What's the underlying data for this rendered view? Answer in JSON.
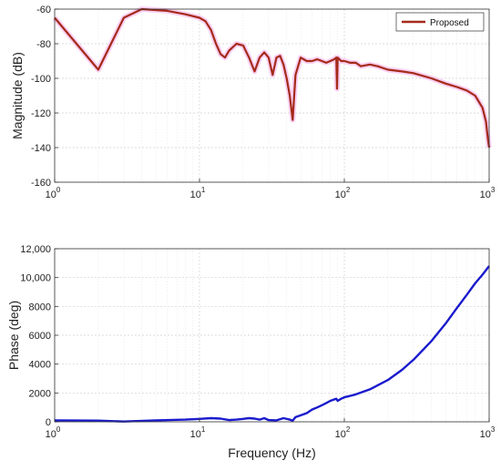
{
  "chart_data": [
    {
      "type": "line",
      "xscale": "log",
      "xlim": [
        1,
        1000
      ],
      "ylim": [
        -160,
        -60
      ],
      "xlabel": "",
      "ylabel": "Magnitude (dB)",
      "xticks": [
        {
          "value": 1,
          "base": "10",
          "exp": "0"
        },
        {
          "value": 10,
          "base": "10",
          "exp": "1"
        },
        {
          "value": 100,
          "base": "10",
          "exp": "2"
        },
        {
          "value": 1000,
          "base": "10",
          "exp": "3"
        }
      ],
      "yticks": [
        {
          "value": -60,
          "label": "-60"
        },
        {
          "value": -80,
          "label": "-80"
        },
        {
          "value": -100,
          "label": "-100"
        },
        {
          "value": -120,
          "label": "-120"
        },
        {
          "value": -140,
          "label": "-140"
        },
        {
          "value": -160,
          "label": "-160"
        }
      ],
      "grid": true,
      "legend": {
        "position": "top-right",
        "entries": [
          "Proposed"
        ]
      },
      "series": [
        {
          "name": "Proposed",
          "color": "#a52a1a",
          "x": [
            1,
            2,
            3,
            4,
            6,
            8,
            10,
            11,
            12,
            13,
            14,
            15,
            16,
            18,
            20,
            22,
            24,
            26,
            28,
            30,
            32,
            34,
            36,
            38,
            40,
            42,
            44,
            46,
            50,
            55,
            60,
            65,
            70,
            75,
            80,
            85,
            88,
            89,
            90,
            95,
            100,
            110,
            120,
            130,
            150,
            170,
            200,
            250,
            300,
            400,
            500,
            600,
            700,
            800,
            900,
            950,
            980,
            1000
          ],
          "y": [
            -65,
            -95,
            -65,
            -60,
            -61,
            -63,
            -65,
            -67,
            -72,
            -80,
            -86,
            -88,
            -84,
            -80,
            -81,
            -88,
            -96,
            -88,
            -85,
            -88,
            -98,
            -88,
            -87,
            -92,
            -100,
            -110,
            -124,
            -98,
            -88,
            -90,
            -90,
            -89,
            -90,
            -91,
            -90,
            -89,
            -88,
            -106,
            -88,
            -90,
            -90,
            -91,
            -91,
            -93,
            -92,
            -93,
            -95,
            -96,
            -97,
            -100,
            -103,
            -105,
            -107,
            -110,
            -117,
            -125,
            -135,
            -140
          ]
        }
      ]
    },
    {
      "type": "line",
      "xscale": "log",
      "xlim": [
        1,
        1000
      ],
      "ylim": [
        0,
        12000
      ],
      "xlabel": "Frequency (Hz)",
      "ylabel": "Phase (deg)",
      "xticks": [
        {
          "value": 1,
          "base": "10",
          "exp": "0"
        },
        {
          "value": 10,
          "base": "10",
          "exp": "1"
        },
        {
          "value": 100,
          "base": "10",
          "exp": "2"
        },
        {
          "value": 1000,
          "base": "10",
          "exp": "3"
        }
      ],
      "yticks": [
        {
          "value": 0,
          "label": "0"
        },
        {
          "value": 2000,
          "label": "2000"
        },
        {
          "value": 4000,
          "label": "4000"
        },
        {
          "value": 6000,
          "label": "6000"
        },
        {
          "value": 8000,
          "label": "8000"
        },
        {
          "value": 10000,
          "label": "10,000"
        },
        {
          "value": 12000,
          "label": "12,000"
        }
      ],
      "grid": true,
      "series": [
        {
          "color": "#1a1acd",
          "x": [
            1,
            2,
            3,
            5,
            8,
            10,
            12,
            14,
            16,
            18,
            20,
            22,
            24,
            26,
            28,
            30,
            34,
            38,
            42,
            44,
            46,
            50,
            55,
            60,
            65,
            70,
            75,
            80,
            85,
            88,
            90,
            95,
            100,
            120,
            150,
            200,
            250,
            300,
            400,
            500,
            600,
            700,
            800,
            900,
            1000
          ],
          "y": [
            100,
            80,
            20,
            100,
            150,
            200,
            250,
            220,
            120,
            150,
            200,
            250,
            220,
            150,
            250,
            120,
            100,
            250,
            150,
            80,
            320,
            450,
            600,
            850,
            1000,
            1150,
            1300,
            1450,
            1550,
            1600,
            1450,
            1600,
            1700,
            1900,
            2250,
            2900,
            3600,
            4300,
            5600,
            6800,
            7900,
            8800,
            9600,
            10200,
            10800
          ]
        }
      ]
    }
  ]
}
